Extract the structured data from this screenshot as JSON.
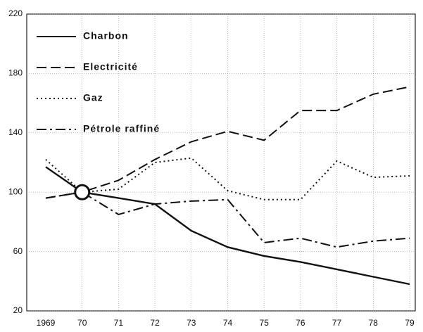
{
  "chart_data": {
    "type": "line",
    "categories": [
      "1969",
      "70",
      "71",
      "72",
      "73",
      "74",
      "75",
      "76",
      "77",
      "78",
      "79"
    ],
    "series": [
      {
        "name": "Charbon",
        "color": "#111111",
        "style": "solid",
        "values": [
          117,
          100,
          96,
          92,
          74,
          63,
          57,
          53,
          48,
          43,
          38
        ]
      },
      {
        "name": "Electricité",
        "color": "#111111",
        "style": "dashed",
        "values": [
          96,
          100,
          108,
          122,
          134,
          141,
          135,
          155,
          155,
          166,
          171
        ]
      },
      {
        "name": "Gaz",
        "color": "#111111",
        "style": "dotted",
        "values": [
          122,
          100,
          102,
          120,
          123,
          101,
          95,
          95,
          121,
          110,
          111
        ]
      },
      {
        "name": "Pétrole raffiné",
        "color": "#111111",
        "style": "dashdot",
        "values": [
          96,
          100,
          85,
          92,
          94,
          95,
          66,
          69,
          63,
          67,
          69
        ]
      }
    ],
    "ylim": [
      20,
      220
    ],
    "yticks": [
      20,
      60,
      100,
      140,
      180,
      220
    ],
    "grid": true,
    "legend": "upper left"
  }
}
